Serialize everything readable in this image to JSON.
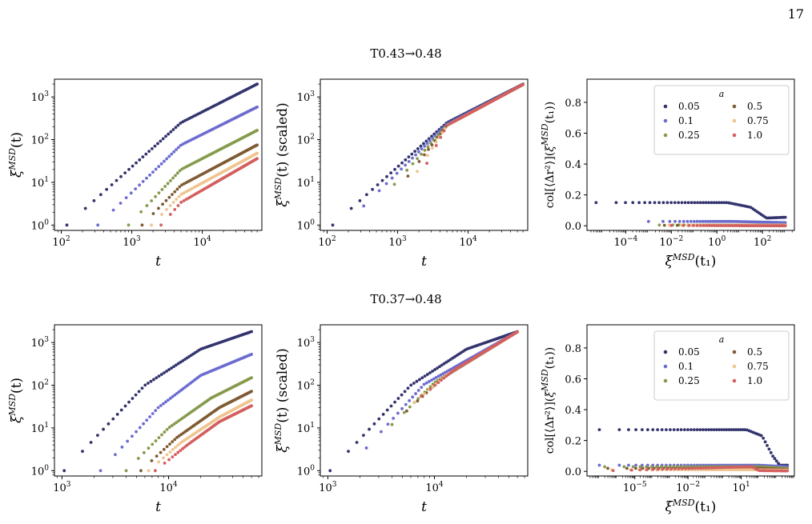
{
  "page_number": "17",
  "row_titles": [
    "T0.43→0.48",
    "T0.37→0.48"
  ],
  "series_colors": {
    "0.05": "#33336e",
    "0.1": "#6c6cd0",
    "0.25": "#869a4c",
    "0.5": "#7f5b33",
    "0.75": "#efc48f",
    "1.0": "#d35f5f"
  },
  "legend": {
    "title": "a",
    "entries": [
      "0.05",
      "0.5",
      "0.1",
      "0.75",
      "0.25",
      "1.0"
    ]
  },
  "chart_data": [
    {
      "type": "scatter",
      "panel": "top-left",
      "xscale": "log",
      "yscale": "log",
      "xlabel": "t",
      "ylabel": "ξ^MSD(t)",
      "xlim": [
        80,
        70000
      ],
      "ylim": [
        0.75,
        2600
      ],
      "xticks": [
        {
          "v": 100,
          "t": "10",
          "e": "2"
        },
        {
          "v": 1000,
          "t": "10",
          "e": "3"
        },
        {
          "v": 10000,
          "t": "10",
          "e": "4"
        }
      ],
      "yticks": [
        {
          "v": 1,
          "t": "10",
          "e": "0"
        },
        {
          "v": 10,
          "t": "10",
          "e": "1"
        },
        {
          "v": 100,
          "t": "10",
          "e": "2"
        },
        {
          "v": 1000,
          "t": "10",
          "e": "3"
        }
      ],
      "series": [
        {
          "key": "0.05",
          "points": [
            [
              120,
              1
            ],
            [
              5000,
              250
            ],
            [
              60000,
              2000
            ]
          ]
        },
        {
          "key": "0.1",
          "points": [
            [
              330,
              1
            ],
            [
              5000,
              75
            ],
            [
              60000,
              580
            ]
          ]
        },
        {
          "key": "0.25",
          "points": [
            [
              900,
              1
            ],
            [
              5000,
              20
            ],
            [
              60000,
              165
            ]
          ]
        },
        {
          "key": "0.5",
          "points": [
            [
              1400,
              1
            ],
            [
              5000,
              8.5
            ],
            [
              60000,
              75
            ]
          ]
        },
        {
          "key": "0.75",
          "points": [
            [
              1900,
              1
            ],
            [
              5000,
              5.2
            ],
            [
              60000,
              48
            ]
          ]
        },
        {
          "key": "1.0",
          "points": [
            [
              2600,
              1
            ],
            [
              5000,
              3.4
            ],
            [
              60000,
              36
            ]
          ]
        }
      ]
    },
    {
      "type": "scatter",
      "panel": "top-middle",
      "xscale": "log",
      "yscale": "log",
      "xlabel": "t",
      "ylabel": "ξ^MSD(t) (scaled)",
      "xlim": [
        80,
        70000
      ],
      "ylim": [
        0.75,
        2600
      ],
      "xticks": [
        {
          "v": 100,
          "t": "10",
          "e": "2"
        },
        {
          "v": 1000,
          "t": "10",
          "e": "3"
        },
        {
          "v": 10000,
          "t": "10",
          "e": "4"
        }
      ],
      "yticks": [
        {
          "v": 1,
          "t": "10",
          "e": "0"
        },
        {
          "v": 10,
          "t": "10",
          "e": "1"
        },
        {
          "v": 100,
          "t": "10",
          "e": "2"
        },
        {
          "v": 1000,
          "t": "10",
          "e": "3"
        }
      ],
      "series": [
        {
          "key": "0.05",
          "points": [
            [
              120,
              1
            ],
            [
              5000,
              250
            ],
            [
              60000,
              2000
            ]
          ]
        },
        {
          "key": "0.1",
          "points": [
            [
              330,
              2.8
            ],
            [
              5000,
              230
            ],
            [
              60000,
              1950
            ]
          ]
        },
        {
          "key": "0.25",
          "points": [
            [
              900,
              9
            ],
            [
              5000,
              215
            ],
            [
              60000,
              1950
            ]
          ]
        },
        {
          "key": "0.5",
          "points": [
            [
              1400,
              14
            ],
            [
              5000,
              215
            ],
            [
              60000,
              1950
            ]
          ]
        },
        {
          "key": "0.75",
          "points": [
            [
              1900,
              18
            ],
            [
              5000,
              215
            ],
            [
              60000,
              1950
            ]
          ]
        },
        {
          "key": "1.0",
          "points": [
            [
              2600,
              28
            ],
            [
              5000,
              215
            ],
            [
              60000,
              1950
            ]
          ]
        }
      ]
    },
    {
      "type": "scatter",
      "panel": "top-right",
      "xscale": "log",
      "yscale": "linear",
      "xlabel": "ξ^MSD(t₁)",
      "ylabel": "col[⟨Δr²⟩](ξ^MSD(t₁))",
      "xlim": [
        2e-06,
        2500
      ],
      "ylim": [
        -0.03,
        0.95
      ],
      "xticks": [
        {
          "v": 0.0001,
          "t": "10",
          "e": "−4"
        },
        {
          "v": 0.01,
          "t": "10",
          "e": "−2"
        },
        {
          "v": 1,
          "t": "10",
          "e": "0"
        },
        {
          "v": 100,
          "t": "10",
          "e": "2"
        }
      ],
      "yticks": [
        {
          "v": 0,
          "t": "0.0"
        },
        {
          "v": 0.2,
          "t": "0.2"
        },
        {
          "v": 0.4,
          "t": "0.4"
        },
        {
          "v": 0.6,
          "t": "0.6"
        },
        {
          "v": 0.8,
          "t": "0.8"
        }
      ],
      "series": [
        {
          "key": "0.05",
          "points": [
            [
              5e-06,
              0.15
            ],
            [
              3,
              0.15
            ],
            [
              30,
              0.12
            ],
            [
              150,
              0.05
            ],
            [
              1000,
              0.055
            ]
          ]
        },
        {
          "key": "0.1",
          "points": [
            [
              0.001,
              0.028
            ],
            [
              5,
              0.028
            ],
            [
              1000,
              0.02
            ]
          ]
        },
        {
          "key": "0.25",
          "points": [
            [
              0.003,
              0.005
            ],
            [
              1000,
              0.005
            ]
          ]
        },
        {
          "key": "0.5",
          "points": [
            [
              0.005,
              0.003
            ],
            [
              1000,
              0.003
            ]
          ]
        },
        {
          "key": "0.75",
          "points": [
            [
              0.008,
              0.004
            ],
            [
              1000,
              0.004
            ]
          ]
        },
        {
          "key": "1.0",
          "points": [
            [
              0.01,
              0.002
            ],
            [
              1000,
              0.0
            ]
          ]
        }
      ]
    },
    {
      "type": "scatter",
      "panel": "bottom-left",
      "xscale": "log",
      "yscale": "log",
      "xlabel": "t",
      "ylabel": "ξ^MSD(t)",
      "xlim": [
        850,
        75000
      ],
      "ylim": [
        0.75,
        2600
      ],
      "xticks": [
        {
          "v": 1000,
          "t": "10",
          "e": "3"
        },
        {
          "v": 10000,
          "t": "10",
          "e": "4"
        }
      ],
      "yticks": [
        {
          "v": 1,
          "t": "10",
          "e": "0"
        },
        {
          "v": 10,
          "t": "10",
          "e": "1"
        },
        {
          "v": 100,
          "t": "10",
          "e": "2"
        },
        {
          "v": 1000,
          "t": "10",
          "e": "3"
        }
      ],
      "series": [
        {
          "key": "0.05",
          "points": [
            [
              1050,
              1
            ],
            [
              6000,
              100
            ],
            [
              20000,
              700
            ],
            [
              60000,
              1800
            ]
          ]
        },
        {
          "key": "0.1",
          "points": [
            [
              2300,
              1
            ],
            [
              8000,
              30
            ],
            [
              20000,
              170
            ],
            [
              60000,
              530
            ]
          ]
        },
        {
          "key": "0.25",
          "points": [
            [
              4000,
              1
            ],
            [
              10000,
              10
            ],
            [
              25000,
              50
            ],
            [
              60000,
              150
            ]
          ]
        },
        {
          "key": "0.5",
          "points": [
            [
              5500,
              1
            ],
            [
              12000,
              6
            ],
            [
              30000,
              30
            ],
            [
              60000,
              72
            ]
          ]
        },
        {
          "key": "0.75",
          "points": [
            [
              6500,
              1
            ],
            [
              13000,
              4.5
            ],
            [
              30000,
              18
            ],
            [
              60000,
              45
            ]
          ]
        },
        {
          "key": "1.0",
          "points": [
            [
              7500,
              1
            ],
            [
              15000,
              4
            ],
            [
              30000,
              14
            ],
            [
              60000,
              33
            ]
          ]
        }
      ]
    },
    {
      "type": "scatter",
      "panel": "bottom-middle",
      "xscale": "log",
      "yscale": "log",
      "xlabel": "t",
      "ylabel": "ξ^MSD(t) (scaled)",
      "xlim": [
        850,
        75000
      ],
      "ylim": [
        0.75,
        2600
      ],
      "xticks": [
        {
          "v": 1000,
          "t": "10",
          "e": "3"
        },
        {
          "v": 10000,
          "t": "10",
          "e": "4"
        }
      ],
      "yticks": [
        {
          "v": 1,
          "t": "10",
          "e": "0"
        },
        {
          "v": 10,
          "t": "10",
          "e": "1"
        },
        {
          "v": 100,
          "t": "10",
          "e": "2"
        },
        {
          "v": 1000,
          "t": "10",
          "e": "3"
        }
      ],
      "series": [
        {
          "key": "0.05",
          "points": [
            [
              1050,
              1
            ],
            [
              6000,
              100
            ],
            [
              20000,
              700
            ],
            [
              60000,
              1800
            ]
          ]
        },
        {
          "key": "0.1",
          "points": [
            [
              2300,
              3.4
            ],
            [
              8000,
              105
            ],
            [
              60000,
              1780
            ]
          ]
        },
        {
          "key": "0.25",
          "points": [
            [
              4000,
              12
            ],
            [
              10000,
              115
            ],
            [
              60000,
              1780
            ]
          ]
        },
        {
          "key": "0.5",
          "points": [
            [
              5500,
              25
            ],
            [
              12000,
              150
            ],
            [
              60000,
              1780
            ]
          ]
        },
        {
          "key": "0.75",
          "points": [
            [
              6500,
              40
            ],
            [
              13000,
              175
            ],
            [
              60000,
              1780
            ]
          ]
        },
        {
          "key": "1.0",
          "points": [
            [
              7500,
              55
            ],
            [
              15000,
              220
            ],
            [
              60000,
              1780
            ]
          ]
        }
      ]
    },
    {
      "type": "scatter",
      "panel": "bottom-right",
      "xscale": "log",
      "yscale": "linear",
      "xlabel": "ξ^MSD(t₁)",
      "ylabel": "col[⟨Δr²⟩](ξ^MSD(t₁))",
      "xlim": [
        2e-08,
        10000
      ],
      "ylim": [
        -0.03,
        0.95
      ],
      "xticks": [
        {
          "v": 1e-05,
          "t": "10",
          "e": "−5"
        },
        {
          "v": 0.01,
          "t": "10",
          "e": "−2"
        },
        {
          "v": 10,
          "t": "10",
          "e": "1"
        }
      ],
      "yticks": [
        {
          "v": 0,
          "t": "0.0"
        },
        {
          "v": 0.2,
          "t": "0.2"
        },
        {
          "v": 0.4,
          "t": "0.4"
        },
        {
          "v": 0.6,
          "t": "0.6"
        },
        {
          "v": 0.8,
          "t": "0.8"
        }
      ],
      "series": [
        {
          "key": "0.05",
          "points": [
            [
              1e-07,
              0.27
            ],
            [
              20,
              0.27
            ],
            [
              150,
              0.23
            ],
            [
              600,
              0.1
            ],
            [
              1500,
              0.04
            ],
            [
              4000,
              0.04
            ]
          ]
        },
        {
          "key": "0.1",
          "points": [
            [
              1e-07,
              0.04
            ],
            [
              100,
              0.04
            ],
            [
              4000,
              0.03
            ]
          ]
        },
        {
          "key": "0.25",
          "points": [
            [
              2e-07,
              0.03
            ],
            [
              100,
              0.03
            ],
            [
              4000,
              0.02
            ]
          ]
        },
        {
          "key": "0.5",
          "points": [
            [
              3e-07,
              0.02
            ],
            [
              100,
              0.02
            ],
            [
              4000,
              0.012
            ]
          ]
        },
        {
          "key": "0.75",
          "points": [
            [
              5e-07,
              0.01
            ],
            [
              100,
              0.01
            ],
            [
              4000,
              0.008
            ]
          ]
        },
        {
          "key": "1.0",
          "points": [
            [
              6e-07,
              0.005
            ],
            [
              40,
              0.03
            ],
            [
              100,
              0.005
            ],
            [
              4000,
              0.003
            ]
          ]
        }
      ]
    }
  ]
}
